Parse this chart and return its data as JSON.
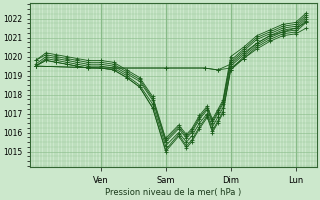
{
  "bg_color": "#cce8cc",
  "plot_bg_color": "#cce8cc",
  "grid_color": "#88bb88",
  "line_color": "#1a5c1a",
  "ylabel": "Pression niveau de la mer( hPa )",
  "ylim": [
    1014.2,
    1022.8
  ],
  "yticks": [
    1015,
    1016,
    1017,
    1018,
    1019,
    1020,
    1021,
    1022
  ],
  "day_labels": [
    "Ven",
    "Sam",
    "Dim",
    "Lun"
  ],
  "day_positions": [
    0.25,
    0.5,
    0.75,
    1.0
  ],
  "xlim": [
    -0.02,
    1.08
  ],
  "series": [
    {
      "pts": [
        [
          0.0,
          1019.5
        ],
        [
          0.04,
          1019.8
        ],
        [
          0.08,
          1019.7
        ],
        [
          0.12,
          1019.6
        ],
        [
          0.16,
          1019.5
        ],
        [
          0.2,
          1019.4
        ],
        [
          0.25,
          1019.4
        ],
        [
          0.3,
          1019.3
        ],
        [
          0.35,
          1018.9
        ],
        [
          0.4,
          1018.4
        ],
        [
          0.45,
          1017.3
        ],
        [
          0.5,
          1015.0
        ],
        [
          0.55,
          1015.8
        ],
        [
          0.58,
          1015.2
        ],
        [
          0.6,
          1015.5
        ],
        [
          0.63,
          1016.2
        ],
        [
          0.66,
          1016.8
        ],
        [
          0.68,
          1016.0
        ],
        [
          0.7,
          1016.5
        ],
        [
          0.72,
          1017.0
        ],
        [
          0.75,
          1019.3
        ],
        [
          0.8,
          1019.9
        ],
        [
          0.85,
          1020.5
        ],
        [
          0.9,
          1020.9
        ],
        [
          0.95,
          1021.2
        ],
        [
          1.0,
          1021.3
        ],
        [
          1.04,
          1021.8
        ]
      ]
    },
    {
      "pts": [
        [
          0.0,
          1019.5
        ],
        [
          0.04,
          1019.9
        ],
        [
          0.08,
          1019.8
        ],
        [
          0.12,
          1019.7
        ],
        [
          0.16,
          1019.6
        ],
        [
          0.2,
          1019.5
        ],
        [
          0.25,
          1019.5
        ],
        [
          0.3,
          1019.4
        ],
        [
          0.35,
          1019.0
        ],
        [
          0.4,
          1018.5
        ],
        [
          0.45,
          1017.5
        ],
        [
          0.5,
          1015.3
        ],
        [
          0.55,
          1016.0
        ],
        [
          0.58,
          1015.5
        ],
        [
          0.6,
          1015.8
        ],
        [
          0.63,
          1016.5
        ],
        [
          0.66,
          1017.0
        ],
        [
          0.68,
          1016.3
        ],
        [
          0.7,
          1016.8
        ],
        [
          0.72,
          1017.3
        ],
        [
          0.75,
          1019.5
        ],
        [
          0.8,
          1020.1
        ],
        [
          0.85,
          1020.7
        ],
        [
          0.9,
          1021.1
        ],
        [
          0.95,
          1021.4
        ],
        [
          1.0,
          1021.5
        ],
        [
          1.04,
          1022.0
        ]
      ]
    },
    {
      "pts": [
        [
          0.0,
          1019.6
        ],
        [
          0.04,
          1020.0
        ],
        [
          0.08,
          1019.9
        ],
        [
          0.12,
          1019.8
        ],
        [
          0.16,
          1019.7
        ],
        [
          0.2,
          1019.6
        ],
        [
          0.25,
          1019.6
        ],
        [
          0.3,
          1019.5
        ],
        [
          0.35,
          1019.1
        ],
        [
          0.4,
          1018.7
        ],
        [
          0.45,
          1017.7
        ],
        [
          0.5,
          1015.5
        ],
        [
          0.55,
          1016.2
        ],
        [
          0.58,
          1015.7
        ],
        [
          0.6,
          1016.0
        ],
        [
          0.63,
          1016.7
        ],
        [
          0.66,
          1017.2
        ],
        [
          0.68,
          1016.5
        ],
        [
          0.7,
          1017.0
        ],
        [
          0.72,
          1017.5
        ],
        [
          0.75,
          1019.7
        ],
        [
          0.8,
          1020.3
        ],
        [
          0.85,
          1020.9
        ],
        [
          0.9,
          1021.2
        ],
        [
          0.95,
          1021.5
        ],
        [
          1.0,
          1021.6
        ],
        [
          1.04,
          1022.1
        ]
      ]
    },
    {
      "pts": [
        [
          0.0,
          1019.5
        ],
        [
          0.04,
          1019.8
        ],
        [
          0.08,
          1019.7
        ],
        [
          0.12,
          1019.6
        ],
        [
          0.16,
          1019.5
        ],
        [
          0.2,
          1019.4
        ],
        [
          0.25,
          1019.4
        ],
        [
          0.3,
          1019.3
        ],
        [
          0.35,
          1018.9
        ],
        [
          0.4,
          1018.4
        ],
        [
          0.45,
          1017.3
        ],
        [
          0.5,
          1015.1
        ],
        [
          0.55,
          1015.9
        ],
        [
          0.58,
          1015.3
        ],
        [
          0.6,
          1015.6
        ],
        [
          0.63,
          1016.3
        ],
        [
          0.66,
          1016.9
        ],
        [
          0.68,
          1016.1
        ],
        [
          0.7,
          1016.6
        ],
        [
          0.72,
          1017.1
        ],
        [
          0.75,
          1019.3
        ],
        [
          0.8,
          1020.0
        ],
        [
          0.85,
          1020.6
        ],
        [
          0.9,
          1021.0
        ],
        [
          0.95,
          1021.3
        ],
        [
          1.0,
          1021.4
        ],
        [
          1.04,
          1021.9
        ]
      ]
    },
    {
      "pts": [
        [
          0.0,
          1019.5
        ],
        [
          0.25,
          1019.4
        ],
        [
          0.5,
          1019.4
        ],
        [
          0.65,
          1019.4
        ],
        [
          0.7,
          1019.3
        ],
        [
          0.75,
          1019.4
        ],
        [
          0.8,
          1019.9
        ],
        [
          0.85,
          1020.4
        ],
        [
          0.9,
          1020.8
        ],
        [
          0.95,
          1021.1
        ],
        [
          1.0,
          1021.2
        ],
        [
          1.04,
          1021.5
        ]
      ]
    },
    {
      "pts": [
        [
          0.0,
          1019.5
        ],
        [
          0.25,
          1019.4
        ],
        [
          0.5,
          1019.4
        ],
        [
          0.65,
          1019.4
        ],
        [
          0.7,
          1019.3
        ],
        [
          0.75,
          1019.6
        ],
        [
          0.8,
          1020.2
        ],
        [
          0.85,
          1020.7
        ],
        [
          0.9,
          1021.1
        ],
        [
          0.95,
          1021.3
        ],
        [
          1.0,
          1021.5
        ],
        [
          1.04,
          1021.8
        ]
      ]
    },
    {
      "pts": [
        [
          0.0,
          1019.8
        ],
        [
          0.04,
          1020.1
        ],
        [
          0.08,
          1020.0
        ],
        [
          0.12,
          1019.9
        ],
        [
          0.16,
          1019.8
        ],
        [
          0.2,
          1019.7
        ],
        [
          0.25,
          1019.7
        ],
        [
          0.3,
          1019.6
        ],
        [
          0.35,
          1019.2
        ],
        [
          0.4,
          1018.8
        ],
        [
          0.45,
          1017.8
        ],
        [
          0.5,
          1015.6
        ],
        [
          0.55,
          1016.3
        ],
        [
          0.58,
          1015.8
        ],
        [
          0.6,
          1016.1
        ],
        [
          0.63,
          1016.8
        ],
        [
          0.66,
          1017.3
        ],
        [
          0.68,
          1016.6
        ],
        [
          0.7,
          1017.1
        ],
        [
          0.72,
          1017.6
        ],
        [
          0.75,
          1019.8
        ],
        [
          0.8,
          1020.4
        ],
        [
          0.85,
          1021.0
        ],
        [
          0.9,
          1021.3
        ],
        [
          0.95,
          1021.6
        ],
        [
          1.0,
          1021.7
        ],
        [
          1.04,
          1022.2
        ]
      ]
    },
    {
      "pts": [
        [
          0.0,
          1019.8
        ],
        [
          0.04,
          1020.2
        ],
        [
          0.08,
          1020.1
        ],
        [
          0.12,
          1020.0
        ],
        [
          0.16,
          1019.9
        ],
        [
          0.2,
          1019.8
        ],
        [
          0.25,
          1019.8
        ],
        [
          0.3,
          1019.7
        ],
        [
          0.35,
          1019.3
        ],
        [
          0.4,
          1018.9
        ],
        [
          0.45,
          1017.9
        ],
        [
          0.5,
          1015.7
        ],
        [
          0.55,
          1016.4
        ],
        [
          0.58,
          1015.9
        ],
        [
          0.6,
          1016.2
        ],
        [
          0.63,
          1016.9
        ],
        [
          0.66,
          1017.4
        ],
        [
          0.68,
          1016.7
        ],
        [
          0.7,
          1017.2
        ],
        [
          0.72,
          1017.7
        ],
        [
          0.75,
          1020.0
        ],
        [
          0.8,
          1020.5
        ],
        [
          0.85,
          1021.1
        ],
        [
          0.9,
          1021.4
        ],
        [
          0.95,
          1021.7
        ],
        [
          1.0,
          1021.8
        ],
        [
          1.04,
          1022.3
        ]
      ]
    }
  ]
}
